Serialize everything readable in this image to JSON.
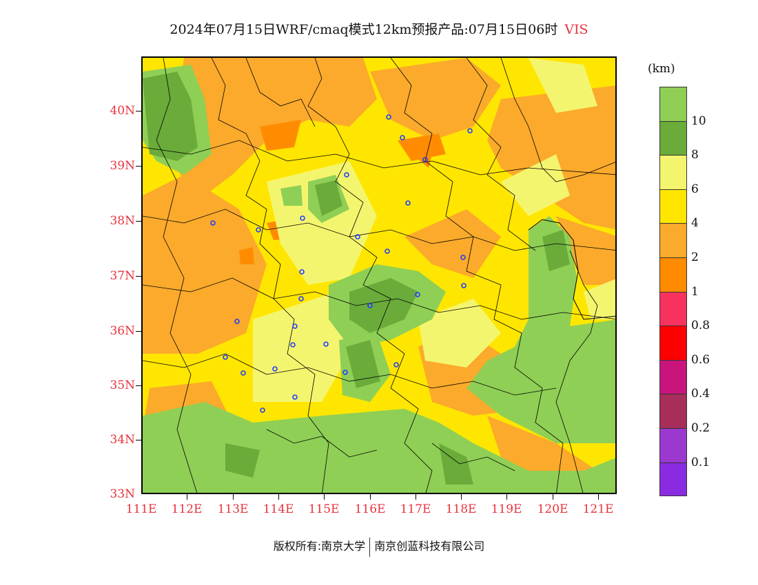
{
  "title": {
    "main": "2024年07月15日WRF/cmaq模式12km预报产品:07月15日06时",
    "variable": "VIS"
  },
  "axes": {
    "lat_labels": [
      "40N",
      "39N",
      "38N",
      "37N",
      "36N",
      "35N",
      "34N",
      "33N"
    ],
    "lon_labels": [
      "111E",
      "112E",
      "113E",
      "114E",
      "115E",
      "116E",
      "117E",
      "118E",
      "119E",
      "120E",
      "121E"
    ],
    "lat_range": [
      33,
      41
    ],
    "lon_range": [
      111,
      121.4
    ]
  },
  "legend": {
    "unit": "(km)",
    "labels": [
      "10",
      "8",
      "6",
      "4",
      "2",
      "1",
      "0.8",
      "0.6",
      "0.4",
      "0.2",
      "0.1"
    ],
    "colors": [
      "#8fcf55",
      "#6aab3a",
      "#f4f56e",
      "#ffe600",
      "#fbaa2b",
      "#ff8c00",
      "#f7325e",
      "#ff0000",
      "#c9147e",
      "#a72d5a",
      "#9a38d0",
      "#8a2be2"
    ]
  },
  "footer": {
    "copyright": "版权所有:南京大学",
    "company": "南京创蓝科技有限公司"
  }
}
